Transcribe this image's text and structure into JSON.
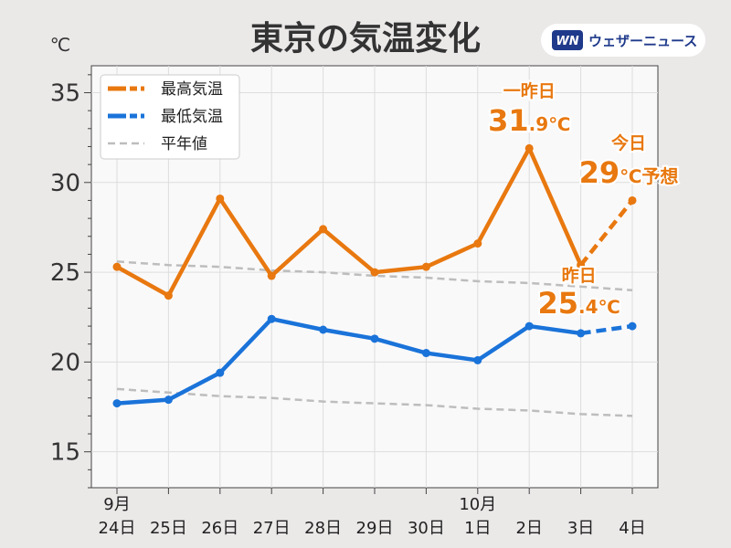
{
  "header": {
    "title": "東京の気温変化",
    "unit": "℃",
    "brand_logo": "WN",
    "brand_name": "ウェザーニュース"
  },
  "colors": {
    "max": "#e8780f",
    "min": "#1a73d9",
    "normal": "#bdbdbd",
    "annotation": "#e8780f"
  },
  "chart_data": {
    "type": "line",
    "title": "東京の気温変化",
    "ylabel": "℃",
    "xlabel": "",
    "ylim": [
      13,
      36.5
    ],
    "yticks": [
      15,
      20,
      25,
      30,
      35
    ],
    "grid": true,
    "legend_position": "top-left",
    "categories": [
      "24日",
      "25日",
      "26日",
      "27日",
      "28日",
      "29日",
      "30日",
      "1日",
      "2日",
      "3日",
      "4日"
    ],
    "month_labels": [
      {
        "index": 0,
        "text": "9月"
      },
      {
        "index": 7,
        "text": "10月"
      }
    ],
    "series": [
      {
        "name": "最高気温",
        "values": [
          25.3,
          23.7,
          29.1,
          24.8,
          27.4,
          25.0,
          25.3,
          26.6,
          31.9,
          25.4,
          29.0
        ],
        "forecast_from_index": 9
      },
      {
        "name": "最低気温",
        "values": [
          17.7,
          17.9,
          19.4,
          22.4,
          21.8,
          21.3,
          20.5,
          20.1,
          22.0,
          21.6,
          22.0
        ],
        "forecast_from_index": 9
      },
      {
        "name": "平年値",
        "values": [
          25.6,
          25.4,
          25.3,
          25.1,
          25.0,
          24.8,
          24.7,
          24.5,
          24.4,
          24.2,
          24.0
        ]
      },
      {
        "values": [
          18.5,
          18.3,
          18.1,
          18.0,
          17.8,
          17.7,
          17.6,
          17.4,
          17.3,
          17.1,
          17.0
        ]
      }
    ],
    "annotations": [
      {
        "label": "一昨日",
        "value": "31",
        "decimal": ".9",
        "unit": "℃"
      },
      {
        "label": "昨日",
        "value": "25",
        "decimal": ".4",
        "unit": "℃"
      },
      {
        "label": "今日",
        "value": "29",
        "decimal": "",
        "unit": "℃予想"
      }
    ]
  }
}
